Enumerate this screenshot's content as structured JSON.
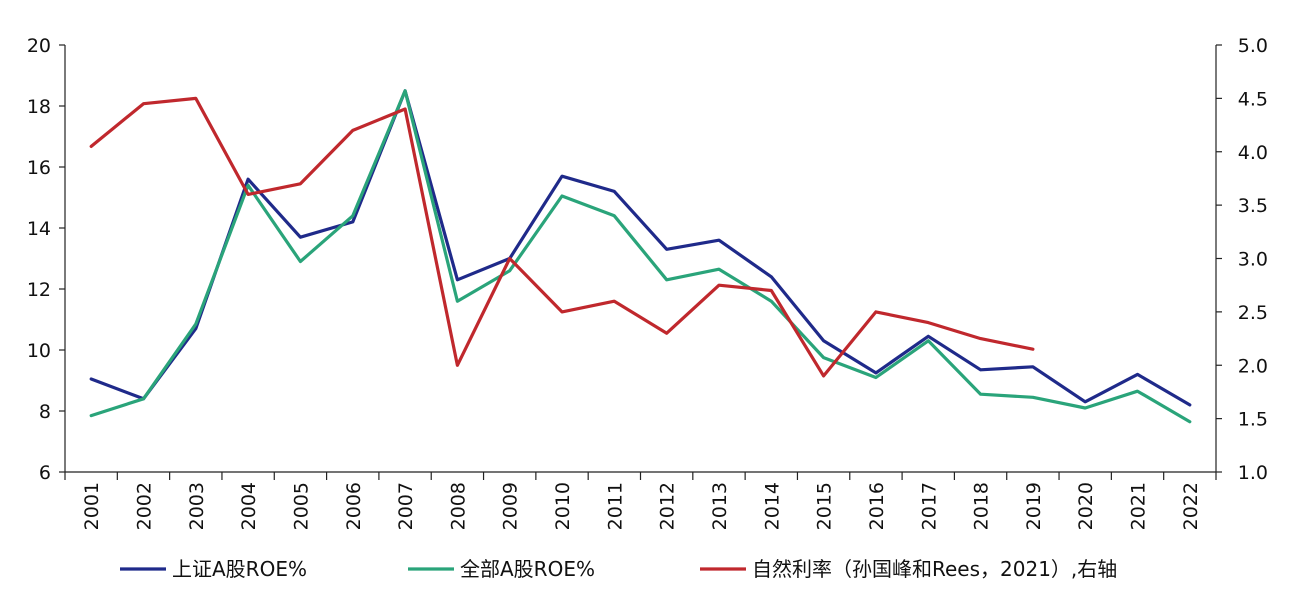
{
  "chart_data": {
    "type": "line",
    "x": [
      "2001",
      "2002",
      "2003",
      "2004",
      "2005",
      "2006",
      "2007",
      "2008",
      "2009",
      "2010",
      "2011",
      "2012",
      "2013",
      "2014",
      "2015",
      "2016",
      "2017",
      "2018",
      "2019",
      "2020",
      "2021",
      "2022"
    ],
    "left_axis": {
      "ylim": [
        6,
        20
      ],
      "ticks": [
        "6",
        "8",
        "10",
        "12",
        "14",
        "16",
        "18",
        "20"
      ]
    },
    "right_axis": {
      "ylim": [
        1.0,
        5.0
      ],
      "ticks": [
        "1.0",
        "1.5",
        "2.0",
        "2.5",
        "3.0",
        "3.5",
        "4.0",
        "4.5",
        "5.0"
      ]
    },
    "series": [
      {
        "name": "上证A股ROE%",
        "axis": "left",
        "color": "#1f2a8a",
        "values": [
          9.05,
          8.4,
          10.7,
          15.6,
          13.7,
          14.2,
          18.5,
          12.3,
          13.0,
          15.7,
          15.2,
          13.3,
          13.6,
          12.4,
          10.3,
          9.25,
          10.45,
          9.35,
          9.45,
          8.3,
          9.2,
          8.2
        ]
      },
      {
        "name": "全部A股ROE%",
        "axis": "left",
        "color": "#2aa47a",
        "values": [
          7.85,
          8.4,
          10.85,
          15.4,
          12.9,
          14.4,
          18.5,
          11.6,
          12.6,
          15.05,
          14.4,
          12.3,
          12.65,
          11.6,
          9.75,
          9.1,
          10.3,
          8.55,
          8.45,
          8.1,
          8.65,
          7.65
        ]
      },
      {
        "name": "自然利率（孙国峰和Rees，2021）,右轴",
        "axis": "right",
        "color": "#c0282d",
        "values": [
          4.05,
          4.45,
          4.5,
          3.6,
          3.7,
          4.2,
          4.4,
          2.0,
          3.0,
          2.5,
          2.6,
          2.3,
          2.75,
          2.7,
          1.9,
          2.5,
          2.4,
          2.25,
          2.15,
          null,
          null,
          null
        ]
      }
    ],
    "grid": false,
    "legend_position": "bottom"
  }
}
